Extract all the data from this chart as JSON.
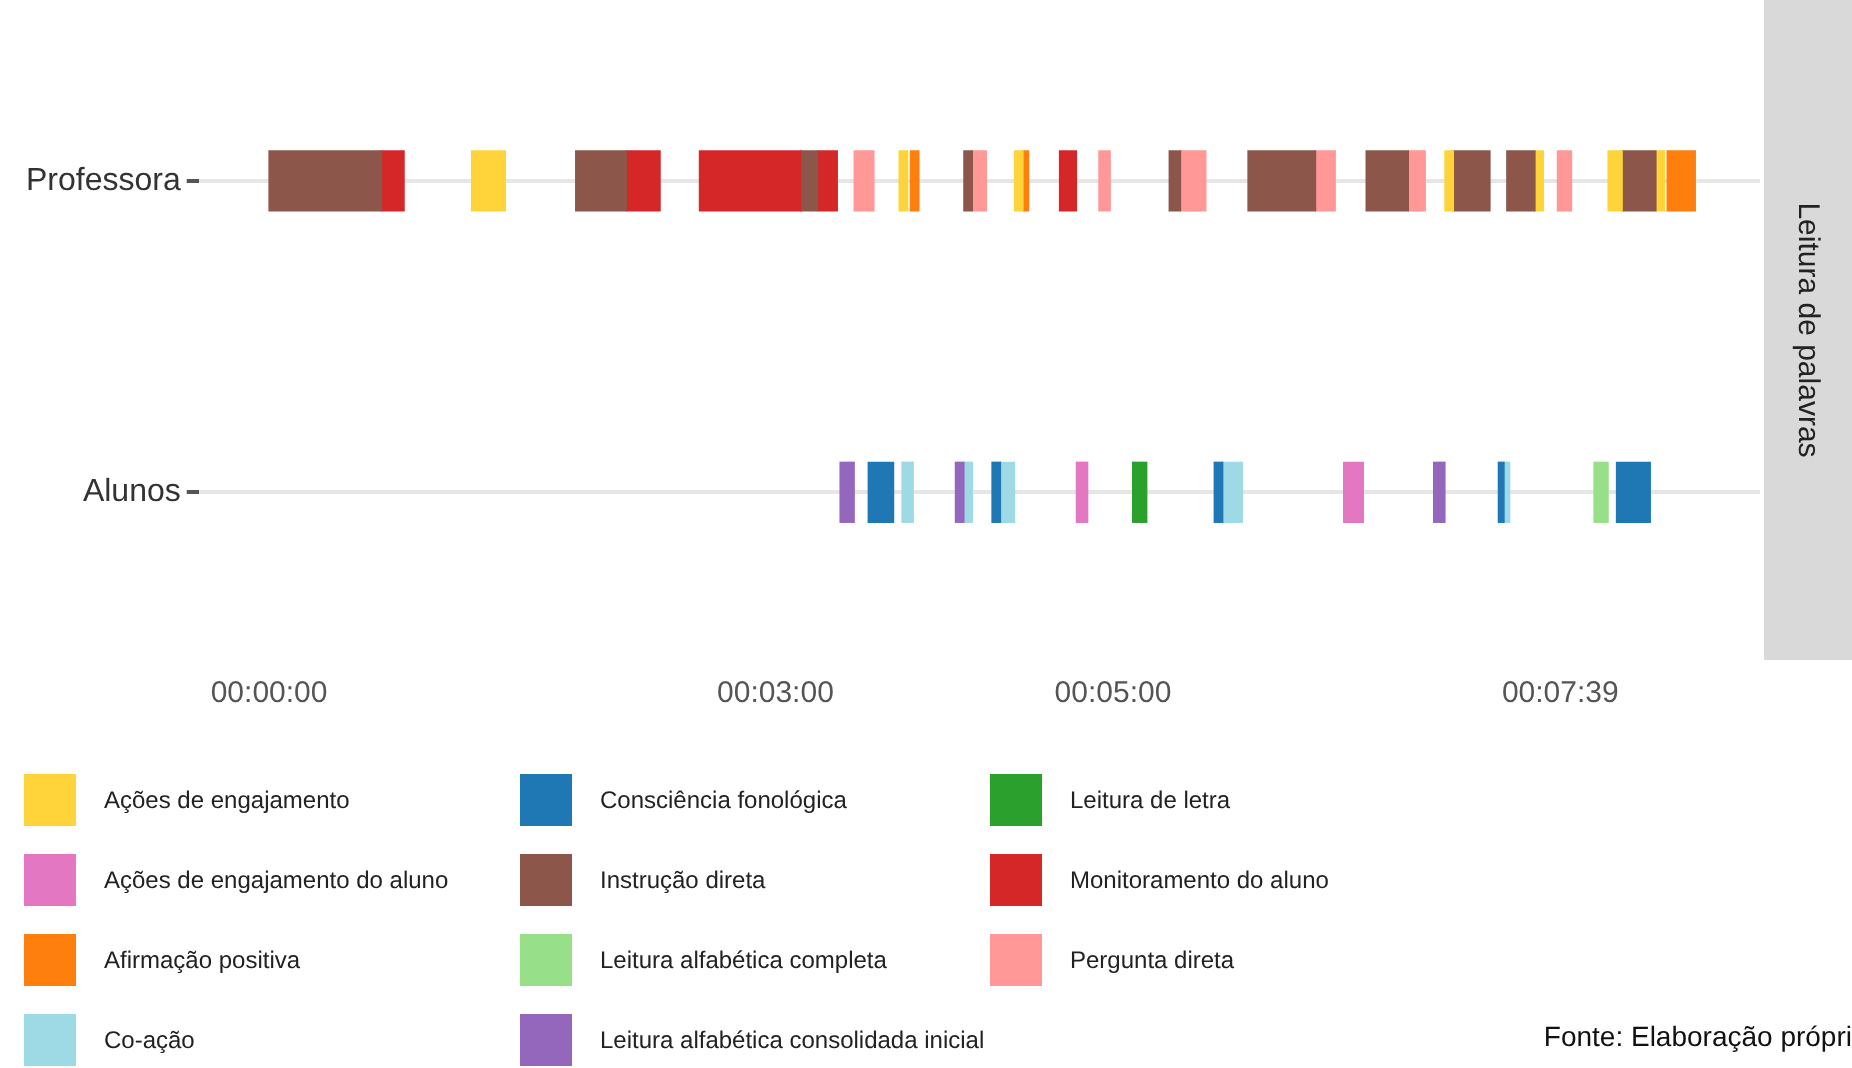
{
  "chart_data": {
    "type": "bar",
    "orientation": "horizontal",
    "categories": [
      "Professora",
      "Alunos"
    ],
    "xlim": [
      -25,
      530
    ],
    "xticks": [
      {
        "value": 0,
        "label": "00:00:00"
      },
      {
        "value": 180,
        "label": "00:03:00"
      },
      {
        "value": 300,
        "label": "00:05:00"
      },
      {
        "value": 459,
        "label": "00:07:39"
      }
    ],
    "grid": "y",
    "legend": "bottom",
    "annotations": [
      "Leitura de palavras",
      "Fonte: Elaboração própri"
    ],
    "series": [
      {
        "name": "Ações de engajamento",
        "color": "#ffd43b",
        "values": [
          12,
          null
        ],
        "base": [
          72,
          null
        ]
      },
      {
        "name": "Ações de engajamento do aluno",
        "color": "#e377c2",
        "values": [
          null,
          4
        ],
        "base": [
          null,
          287
        ]
      },
      {
        "name": "Afirmação positiva",
        "color": "#ff7f0e",
        "values": [
          10,
          null
        ],
        "base": [
          497,
          null
        ]
      },
      {
        "name": "Co-ação",
        "color": "#9edae5",
        "values": [
          null,
          4
        ],
        "base": [
          null,
          225
        ]
      },
      {
        "name": "Consciência fonológica",
        "color": "#1f77b4",
        "values": [
          null,
          9
        ],
        "base": [
          null,
          213
        ]
      },
      {
        "name": "Instrução direta",
        "color": "#8c564b",
        "values": [
          40,
          null
        ],
        "base": [
          0,
          null
        ]
      },
      {
        "name": "Leitura alfabética completa",
        "color": "#98df8a",
        "values": [
          null,
          5
        ],
        "base": [
          null,
          471
        ]
      },
      {
        "name": "Leitura alfabética consolidada inicial",
        "color": "#9467bd",
        "values": [
          null,
          5
        ],
        "base": [
          null,
          203
        ]
      },
      {
        "name": "Leitura de letra",
        "color": "#2ca02c",
        "values": [
          null,
          5
        ],
        "base": [
          null,
          307
        ]
      },
      {
        "name": "Monitoramento do aluno",
        "color": "#d62728",
        "values": [
          8,
          null
        ],
        "base": [
          40,
          null
        ]
      },
      {
        "name": "Pergunta direta",
        "color": "#ff9896",
        "values": [
          7,
          null
        ],
        "base": [
          208,
          null
        ]
      },
      {
        "color": "#8c564b",
        "values": [
          18,
          null
        ],
        "base": [
          109,
          null
        ]
      },
      {
        "color": "#d62728",
        "values": [
          12,
          null
        ],
        "base": [
          127,
          null
        ]
      },
      {
        "color": "#d62728",
        "values": [
          36,
          null
        ],
        "base": [
          153,
          null
        ]
      },
      {
        "color": "#8c564b",
        "values": [
          6,
          null
        ],
        "base": [
          189,
          null
        ]
      },
      {
        "color": "#d62728",
        "values": [
          7,
          null
        ],
        "base": [
          195,
          null
        ]
      },
      {
        "color": "#ffd43b",
        "values": [
          3,
          null
        ],
        "base": [
          224,
          null
        ]
      },
      {
        "color": "#ff7f0e",
        "values": [
          3,
          null
        ],
        "base": [
          228,
          null
        ]
      },
      {
        "color": "#8c564b",
        "values": [
          3,
          null
        ],
        "base": [
          247,
          null
        ]
      },
      {
        "color": "#ff9896",
        "values": [
          5,
          null
        ],
        "base": [
          250,
          null
        ]
      },
      {
        "color": "#ffd43b",
        "values": [
          3,
          null
        ],
        "base": [
          265,
          null
        ]
      },
      {
        "color": "#ff7f0e",
        "values": [
          2,
          null
        ],
        "base": [
          268,
          null
        ]
      },
      {
        "color": "#d62728",
        "values": [
          6,
          null
        ],
        "base": [
          281,
          null
        ]
      },
      {
        "color": "#ff9896",
        "values": [
          4,
          null
        ],
        "base": [
          295,
          null
        ]
      },
      {
        "color": "#8c564b",
        "values": [
          4,
          null
        ],
        "base": [
          320,
          null
        ]
      },
      {
        "color": "#ff9896",
        "values": [
          9,
          null
        ],
        "base": [
          324,
          null
        ]
      },
      {
        "color": "#8c564b",
        "values": [
          24,
          null
        ],
        "base": [
          348,
          null
        ]
      },
      {
        "color": "#ff9896",
        "values": [
          7,
          null
        ],
        "base": [
          372,
          null
        ]
      },
      {
        "color": "#8c564b",
        "values": [
          15,
          null
        ],
        "base": [
          390,
          null
        ]
      },
      {
        "color": "#ff9896",
        "values": [
          6,
          null
        ],
        "base": [
          405,
          null
        ]
      },
      {
        "color": "#ffd43b",
        "values": [
          3,
          null
        ],
        "base": [
          418,
          null
        ]
      },
      {
        "color": "#8c564b",
        "values": [
          13,
          null
        ],
        "base": [
          421,
          null
        ]
      },
      {
        "color": "#8c564b",
        "values": [
          10,
          null
        ],
        "base": [
          440,
          null
        ]
      },
      {
        "color": "#ffd43b",
        "values": [
          3,
          null
        ],
        "base": [
          450,
          null
        ]
      },
      {
        "color": "#ff9896",
        "values": [
          5,
          null
        ],
        "base": [
          458,
          null
        ]
      },
      {
        "color": "#ffd43b",
        "values": [
          5,
          null
        ],
        "base": [
          476,
          null
        ]
      },
      {
        "color": "#8c564b",
        "values": [
          12,
          null
        ],
        "base": [
          481,
          null
        ]
      },
      {
        "color": "#ffd43b",
        "values": [
          3,
          null
        ],
        "base": [
          493,
          null
        ]
      },
      {
        "color": "#9467bd",
        "values": [
          null,
          3
        ],
        "base": [
          null,
          244
        ]
      },
      {
        "color": "#9edae5",
        "values": [
          null,
          3
        ],
        "base": [
          null,
          247
        ]
      },
      {
        "color": "#1f77b4",
        "values": [
          null,
          3
        ],
        "base": [
          null,
          257
        ]
      },
      {
        "color": "#9edae5",
        "values": [
          null,
          5
        ],
        "base": [
          null,
          260
        ]
      },
      {
        "color": "#1f77b4",
        "values": [
          null,
          3
        ],
        "base": [
          null,
          336
        ]
      },
      {
        "color": "#9edae5",
        "values": [
          null,
          7
        ],
        "base": [
          null,
          339
        ]
      },
      {
        "color": "#e377c2",
        "values": [
          null,
          7
        ],
        "base": [
          null,
          382
        ]
      },
      {
        "color": "#9467bd",
        "values": [
          null,
          4
        ],
        "base": [
          null,
          414
        ]
      },
      {
        "color": "#1f77b4",
        "values": [
          null,
          2
        ],
        "base": [
          null,
          437
        ]
      },
      {
        "color": "#9edae5",
        "values": [
          null,
          2
        ],
        "base": [
          null,
          439
        ]
      },
      {
        "color": "#1f77b4",
        "values": [
          null,
          12
        ],
        "base": [
          null,
          479
        ]
      }
    ]
  }
}
